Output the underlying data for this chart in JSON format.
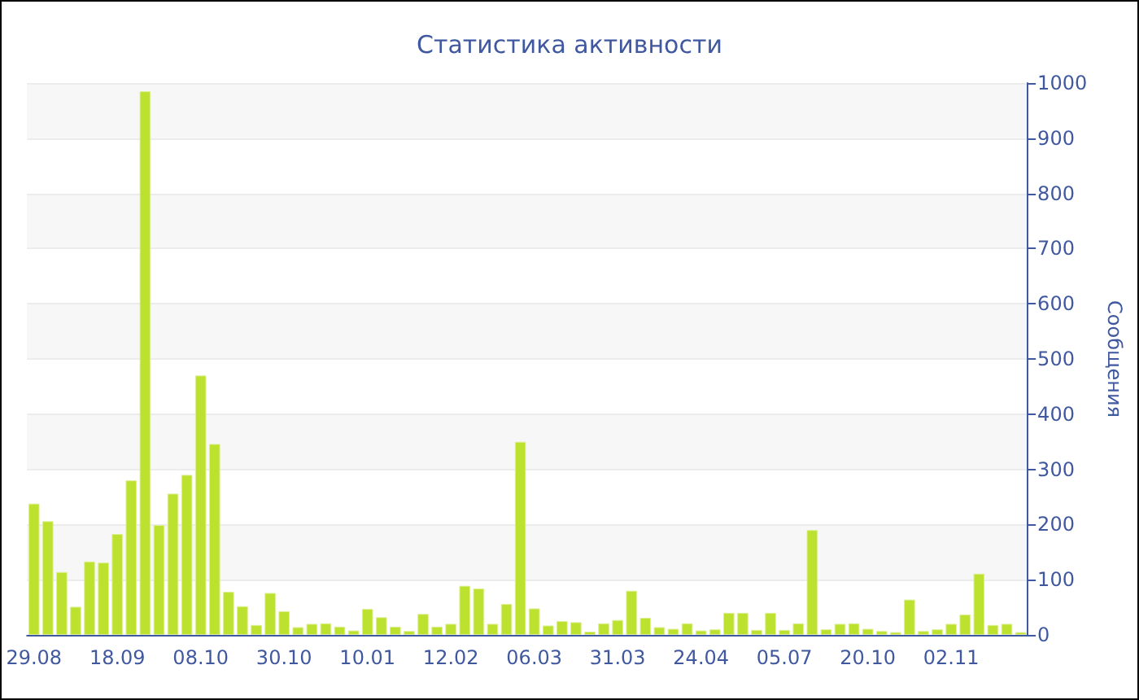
{
  "chart_data": {
    "type": "bar",
    "title": "Статистика активности",
    "ylabel": "Сообщения",
    "categories": [
      "29.08",
      null,
      null,
      null,
      null,
      null,
      "18.09",
      null,
      null,
      null,
      null,
      null,
      "08.10",
      null,
      null,
      null,
      null,
      null,
      "30.10",
      null,
      null,
      null,
      null,
      null,
      "10.01",
      null,
      null,
      null,
      null,
      null,
      "12.02",
      null,
      null,
      null,
      null,
      null,
      "06.03",
      null,
      null,
      null,
      null,
      null,
      "31.03",
      null,
      null,
      null,
      null,
      null,
      "24.04",
      null,
      null,
      null,
      null,
      null,
      "05.07",
      null,
      null,
      null,
      null,
      null,
      "20.10",
      null,
      null,
      null,
      null,
      null,
      "02.11",
      null,
      null,
      null,
      null,
      null
    ],
    "values": [
      238,
      206,
      114,
      51,
      133,
      131,
      183,
      280,
      985,
      199,
      256,
      290,
      470,
      346,
      78,
      52,
      18,
      76,
      43,
      14,
      20,
      21,
      15,
      8,
      47,
      32,
      15,
      7,
      38,
      15,
      20,
      89,
      84,
      20,
      56,
      350,
      48,
      17,
      25,
      23,
      6,
      21,
      27,
      80,
      31,
      14,
      11,
      21,
      8,
      10,
      40,
      40,
      9,
      40,
      9,
      21,
      190,
      10,
      20,
      21,
      11,
      7,
      5,
      64,
      7,
      10,
      20,
      37,
      111,
      18,
      20,
      5
    ],
    "color": "#bce12e",
    "ylim": [
      0,
      1000
    ],
    "yticks": [
      0,
      100,
      200,
      300,
      400,
      500,
      600,
      700,
      800,
      900,
      1000
    ],
    "grid": "y"
  }
}
